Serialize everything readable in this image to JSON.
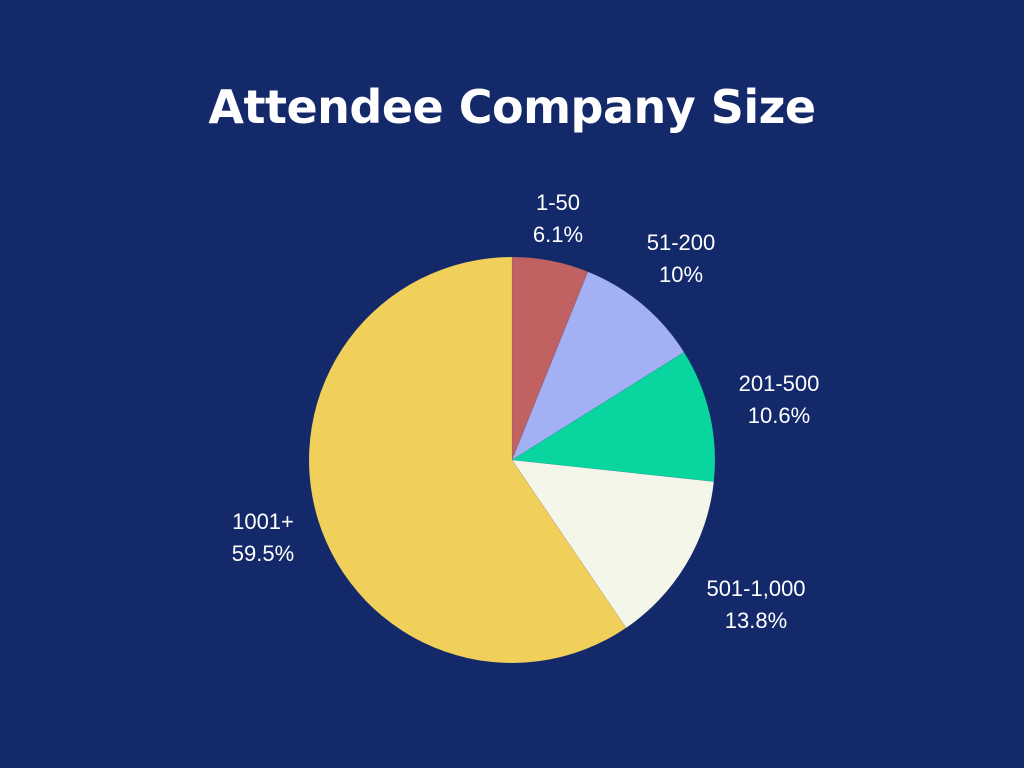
{
  "chart_data": {
    "type": "pie",
    "title": "Attendee Company Size",
    "slices": [
      {
        "label": "1-50",
        "value": 6.1,
        "value_text": "6.1%",
        "color": "#c06262"
      },
      {
        "label": "51-200",
        "value": 10,
        "value_text": "10%",
        "color": "#a3b1f4"
      },
      {
        "label": "201-500",
        "value": 10.6,
        "value_text": "10.6%",
        "color": "#08d69e"
      },
      {
        "label": "501-1,000",
        "value": 13.8,
        "value_text": "13.8%",
        "color": "#f5f6ea"
      },
      {
        "label": "1001+",
        "value": 59.5,
        "value_text": "59.5%",
        "color": "#f0cf5a"
      }
    ],
    "legend": "none",
    "start_angle": "12 o'clock, clockwise"
  },
  "colors": {
    "background": "#13296a",
    "title_text": "#ffffff",
    "label_text": "#ffffff"
  }
}
